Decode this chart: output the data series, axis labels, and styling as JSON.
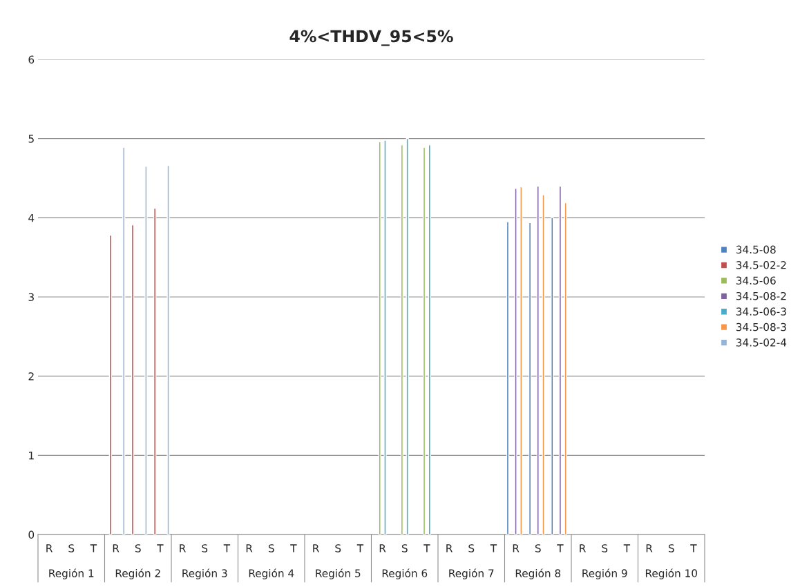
{
  "chart_data": {
    "type": "bar",
    "title": "4%<THDV_95<5%",
    "categories": [
      "R",
      "S",
      "T",
      "R",
      "S",
      "T",
      "R",
      "S",
      "T",
      "R",
      "S",
      "T",
      "R",
      "S",
      "T",
      "R",
      "S",
      "T",
      "R",
      "S",
      "T",
      "R",
      "S",
      "T",
      "R",
      "S",
      "T",
      "R",
      "S",
      "T"
    ],
    "annotations": [
      "Región 1",
      "Región 2",
      "Región 3",
      "Región 4",
      "Región 5",
      "Región 6",
      "Región 7",
      "Región 8",
      "Región 9",
      "Región 10"
    ],
    "series": [
      {
        "name": "34.5-08",
        "color": "#4f81bd",
        "values": [
          null,
          null,
          null,
          null,
          null,
          null,
          null,
          null,
          null,
          null,
          null,
          null,
          null,
          null,
          null,
          null,
          null,
          null,
          null,
          null,
          null,
          3.95,
          3.94,
          4.0,
          null,
          null,
          null,
          null,
          null,
          null
        ]
      },
      {
        "name": "34.5-02-2",
        "color": "#c0504d",
        "values": [
          null,
          null,
          null,
          3.78,
          3.91,
          4.12,
          null,
          null,
          null,
          null,
          null,
          null,
          null,
          null,
          null,
          null,
          null,
          null,
          null,
          null,
          null,
          null,
          null,
          null,
          null,
          null,
          null,
          null,
          null,
          null
        ]
      },
      {
        "name": "34.5-06",
        "color": "#9bbb59",
        "values": [
          null,
          null,
          null,
          null,
          null,
          null,
          null,
          null,
          null,
          null,
          null,
          null,
          null,
          null,
          null,
          4.96,
          4.92,
          4.89,
          null,
          null,
          null,
          null,
          null,
          null,
          null,
          null,
          null,
          null,
          null,
          null
        ]
      },
      {
        "name": "34.5-08-2",
        "color": "#8064a2",
        "values": [
          null,
          null,
          null,
          null,
          null,
          null,
          null,
          null,
          null,
          null,
          null,
          null,
          null,
          null,
          null,
          null,
          null,
          null,
          null,
          null,
          null,
          4.37,
          4.4,
          4.4,
          null,
          null,
          null,
          null,
          null,
          null
        ]
      },
      {
        "name": "34.5-06-3",
        "color": "#4bacc6",
        "values": [
          null,
          null,
          null,
          null,
          null,
          null,
          null,
          null,
          null,
          null,
          null,
          null,
          null,
          null,
          null,
          4.98,
          5.0,
          4.92,
          null,
          null,
          null,
          null,
          null,
          null,
          null,
          null,
          null,
          null,
          null,
          null
        ]
      },
      {
        "name": "34.5-08-3",
        "color": "#f79646",
        "values": [
          null,
          null,
          null,
          null,
          null,
          null,
          null,
          null,
          null,
          null,
          null,
          null,
          null,
          null,
          null,
          null,
          null,
          null,
          null,
          null,
          null,
          4.39,
          4.29,
          4.19,
          null,
          null,
          null,
          null,
          null,
          null
        ]
      },
      {
        "name": "34.5-02-4",
        "color": "#95b3d7",
        "values": [
          null,
          null,
          null,
          4.89,
          4.65,
          4.66,
          null,
          null,
          null,
          null,
          null,
          null,
          null,
          null,
          null,
          null,
          null,
          null,
          null,
          null,
          null,
          null,
          null,
          null,
          null,
          null,
          null,
          null,
          null,
          null
        ]
      }
    ],
    "ylim": [
      0,
      6
    ],
    "yticks": [
      0,
      1,
      2,
      3,
      4,
      5,
      6
    ],
    "grid": "y",
    "legend": "right"
  }
}
